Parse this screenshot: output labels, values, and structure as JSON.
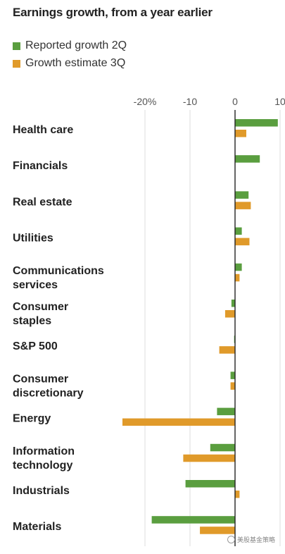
{
  "chart_data": {
    "type": "bar",
    "orientation": "horizontal",
    "title": "Earnings growth, from a year earlier",
    "xlim": [
      -25,
      11
    ],
    "x_ticks": [
      -20,
      -10,
      0,
      10
    ],
    "x_tick_labels": [
      "-20%",
      "-10",
      "0",
      "10"
    ],
    "grid": true,
    "legend_placement": "top-left",
    "categories": [
      [
        "Health care"
      ],
      [
        "Financials"
      ],
      [
        "Real estate"
      ],
      [
        "Utilities"
      ],
      [
        "Communications",
        "services"
      ],
      [
        "Consumer",
        "staples"
      ],
      [
        "S&P 500"
      ],
      [
        "Consumer",
        "discretionary"
      ],
      [
        "Energy"
      ],
      [
        "Information",
        "technology"
      ],
      [
        "Industrials"
      ],
      [
        "Materials"
      ]
    ],
    "series": [
      {
        "name": "Reported growth 2Q",
        "color": "#5a9e3f",
        "values": [
          9.5,
          5.5,
          3.0,
          1.5,
          1.5,
          -0.8,
          -0.2,
          -1.0,
          -4.0,
          -5.5,
          -11.0,
          -18.5
        ]
      },
      {
        "name": "Growth estimate 3Q",
        "color": "#e09a2a",
        "values": [
          2.5,
          null,
          3.5,
          3.2,
          1.0,
          -2.2,
          -3.5,
          -1.0,
          -25.0,
          -11.5,
          1.0,
          -7.8
        ]
      }
    ]
  },
  "watermark": {
    "text": "美股基金策略",
    "icon": "wechat-icon"
  }
}
